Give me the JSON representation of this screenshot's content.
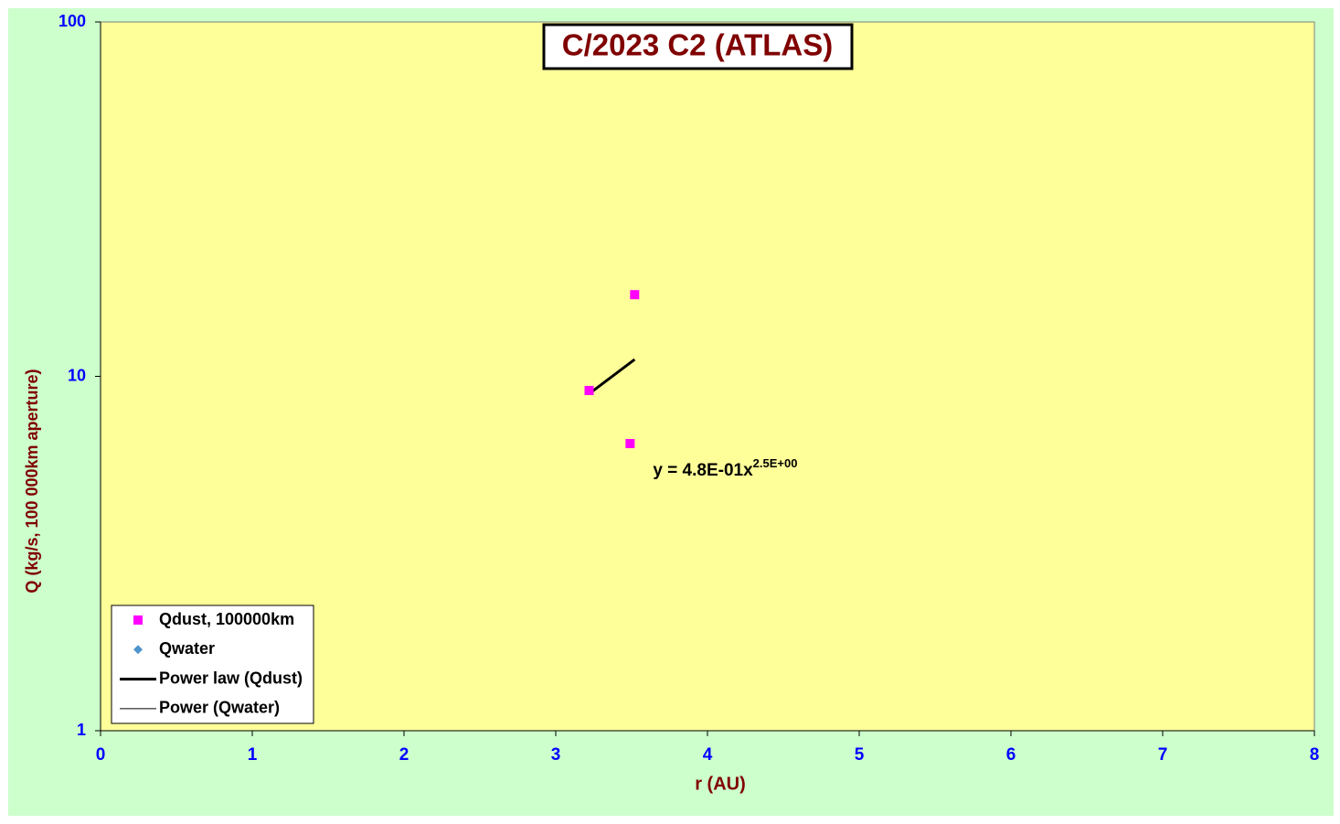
{
  "chart_data": {
    "type": "scatter",
    "title": "C/2023 C2 (ATLAS)",
    "xlabel": "r (AU)",
    "ylabel": "Q (kg/s, 100 000km aperture)",
    "xlim": [
      0,
      8
    ],
    "xticks": [
      0,
      1,
      2,
      3,
      4,
      5,
      6,
      7,
      8
    ],
    "ylim": [
      1,
      100
    ],
    "yticks": [
      1,
      10,
      100
    ],
    "yscale": "log",
    "series": [
      {
        "name": "Qdust, 100000km",
        "color": "#ff00ff",
        "marker": "square",
        "x": [
          3.22,
          3.52,
          3.49
        ],
        "values": [
          9.12,
          17.0,
          6.46
        ]
      },
      {
        "name": "Qwater",
        "color": "#4f94cd",
        "marker": "diamond",
        "x": [],
        "values": []
      }
    ],
    "trendlines": [
      {
        "name": "Power law (Qdust)",
        "color": "#000000",
        "width": 3,
        "x": [
          3.22,
          3.52
        ],
        "values": [
          8.93,
          11.16
        ],
        "equation": {
          "text": "y = 4.8E-01x",
          "exponent": "2.5E+00"
        }
      },
      {
        "name": "Power (Qwater)",
        "color": "#000000",
        "width": 1,
        "x": [],
        "values": []
      }
    ]
  }
}
